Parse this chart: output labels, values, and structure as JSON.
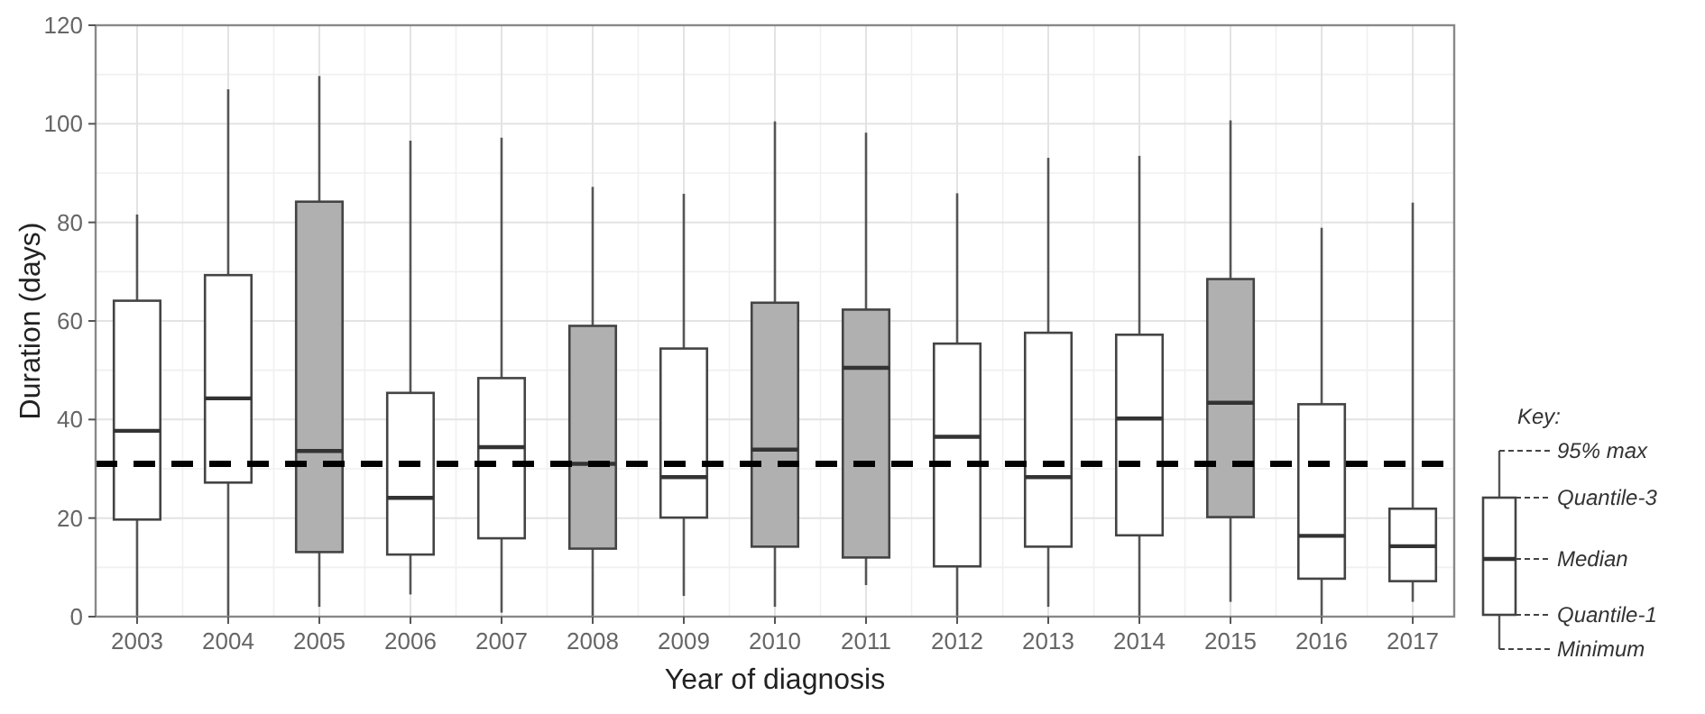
{
  "chart_data": {
    "type": "box",
    "xlabel": "Year of diagnosis",
    "ylabel": "Duration (days)",
    "categories": [
      "2003",
      "2004",
      "2005",
      "2006",
      "2007",
      "2008",
      "2009",
      "2010",
      "2011",
      "2012",
      "2013",
      "2014",
      "2015",
      "2016",
      "2017"
    ],
    "boxes": [
      {
        "low": 0,
        "q1": 19.7,
        "median": 37.7,
        "q3": 64.1,
        "high": 81.6
      },
      {
        "low": 0,
        "q1": 27.2,
        "median": 44.3,
        "q3": 69.3,
        "high": 107
      },
      {
        "low": 2,
        "q1": 13.1,
        "median": 33.6,
        "q3": 84.2,
        "high": 109.7
      },
      {
        "low": 4.5,
        "q1": 12.6,
        "median": 24.1,
        "q3": 45.4,
        "high": 96.6
      },
      {
        "low": 0.8,
        "q1": 15.9,
        "median": 34.4,
        "q3": 48.4,
        "high": 97.2
      },
      {
        "low": 0,
        "q1": 13.8,
        "median": 31,
        "q3": 59,
        "high": 87.2
      },
      {
        "low": 4.2,
        "q1": 20.1,
        "median": 28.3,
        "q3": 54.4,
        "high": 85.8
      },
      {
        "low": 2,
        "q1": 14.2,
        "median": 33.9,
        "q3": 63.7,
        "high": 100.5
      },
      {
        "low": 6.4,
        "q1": 12,
        "median": 50.5,
        "q3": 62.3,
        "high": 98.2
      },
      {
        "low": 0,
        "q1": 10.2,
        "median": 36.5,
        "q3": 55.4,
        "high": 85.9
      },
      {
        "low": 2,
        "q1": 14.2,
        "median": 28.3,
        "q3": 57.6,
        "high": 93.1
      },
      {
        "low": 0,
        "q1": 16.5,
        "median": 40.2,
        "q3": 57.2,
        "high": 93.5
      },
      {
        "low": 3,
        "q1": 20.2,
        "median": 43.4,
        "q3": 68.5,
        "high": 100.7
      },
      {
        "low": 0,
        "q1": 7.7,
        "median": 16.4,
        "q3": 43.1,
        "high": 78.9
      },
      {
        "low": 3,
        "q1": 7.2,
        "median": 14.3,
        "q3": 21.9,
        "high": 84
      }
    ],
    "colors": [
      "#ffffff",
      "#ffffff",
      "#b0b0b0",
      "#ffffff",
      "#ffffff",
      "#b0b0b0",
      "#ffffff",
      "#b0b0b0",
      "#b0b0b0",
      "#ffffff",
      "#ffffff",
      "#ffffff",
      "#b0b0b0",
      "#ffffff",
      "#ffffff"
    ],
    "ylim": [
      0,
      120
    ],
    "yticks": [
      0,
      20,
      40,
      60,
      80,
      100,
      120
    ],
    "grid": true,
    "ref_lines": [
      {
        "axis": "y",
        "value": 31,
        "color": "#000000",
        "line_style": "dashed"
      }
    ],
    "annotations": [
      "Key:",
      "95% max",
      "Quantile-3",
      "Median",
      "Quantile-1",
      "Minimum"
    ]
  }
}
